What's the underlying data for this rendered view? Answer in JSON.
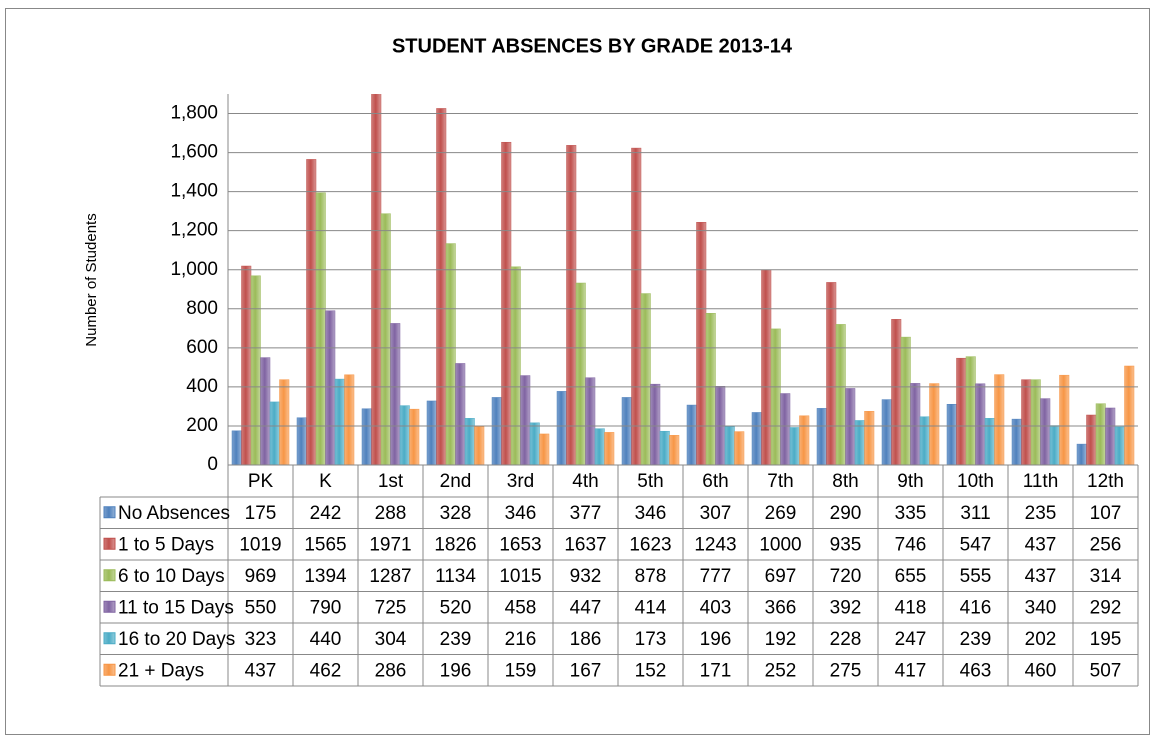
{
  "chart_data": {
    "type": "bar",
    "title": "STUDENT ABSENCES BY GRADE 2013-14",
    "y_label": "Number of Students",
    "categories": [
      "PK",
      "K",
      "1st",
      "2nd",
      "3rd",
      "4th",
      "5th",
      "6th",
      "7th",
      "8th",
      "9th",
      "10th",
      "11th",
      "12th"
    ],
    "series": [
      {
        "name": "No Absences",
        "color": "#4f81bd",
        "values": [
          175,
          242,
          288,
          328,
          346,
          377,
          346,
          307,
          269,
          290,
          335,
          311,
          235,
          107
        ]
      },
      {
        "name": "1 to 5 Days",
        "color": "#c0504d",
        "values": [
          1019,
          1565,
          1971,
          1826,
          1653,
          1637,
          1623,
          1243,
          1000,
          935,
          746,
          547,
          437,
          256
        ]
      },
      {
        "name": "6 to 10 Days",
        "color": "#9bbb59",
        "values": [
          969,
          1394,
          1287,
          1134,
          1015,
          932,
          878,
          777,
          697,
          720,
          655,
          555,
          437,
          314
        ]
      },
      {
        "name": "11 to 15 Days",
        "color": "#8064a2",
        "values": [
          550,
          790,
          725,
          520,
          458,
          447,
          414,
          403,
          366,
          392,
          418,
          416,
          340,
          292
        ]
      },
      {
        "name": "16 to 20 Days",
        "color": "#4bacc6",
        "values": [
          323,
          440,
          304,
          239,
          216,
          186,
          173,
          196,
          192,
          228,
          247,
          239,
          202,
          195
        ]
      },
      {
        "name": "21 + Days",
        "color": "#f79646",
        "values": [
          437,
          462,
          286,
          196,
          159,
          167,
          152,
          171,
          252,
          275,
          417,
          463,
          460,
          507
        ]
      }
    ],
    "ylim": [
      0,
      1900
    ],
    "yticks": [
      0,
      200,
      400,
      600,
      800,
      {
        "value": 1000,
        "label": "1,000"
      },
      {
        "value": 1200,
        "label": "1,200"
      },
      {
        "value": 1400,
        "label": "1,400"
      },
      {
        "value": 1600,
        "label": "1,600"
      },
      {
        "value": 1800,
        "label": "1,800"
      }
    ],
    "grid": true
  }
}
